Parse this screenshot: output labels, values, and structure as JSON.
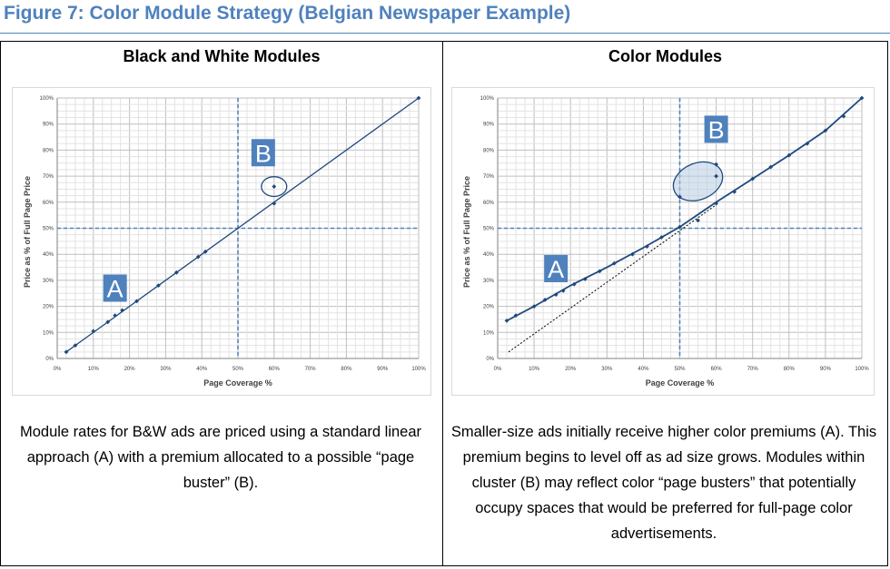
{
  "figure": {
    "title": "Figure 7: Color Module Strategy (Belgian Newspaper Example)",
    "accent_color": "#4f81bd",
    "line_color": "#1f497d"
  },
  "panels": [
    {
      "title": "Black and White Modules",
      "caption": "Module rates for B&W ads are priced using a standard linear approach (A) with a premium allocated to a possible “page buster” (B)."
    },
    {
      "title": "Color Modules",
      "caption": "Smaller-size ads initially receive higher color premiums (A). This premium begins to level off as ad size grows. Modules within cluster (B) may reflect color “page busters” that potentially occupy spaces that would be preferred for full-page color advertisements."
    }
  ],
  "chart_data": [
    {
      "type": "scatter",
      "title": "",
      "xlabel": "Page Coverage %",
      "ylabel": "Price as % of Full Page Price",
      "xlim": [
        0,
        100
      ],
      "ylim": [
        0,
        100
      ],
      "xticks": [
        "0%",
        "10%",
        "20%",
        "30%",
        "40%",
        "50%",
        "60%",
        "70%",
        "80%",
        "90%",
        "100%"
      ],
      "yticks": [
        "0%",
        "10%",
        "20%",
        "30%",
        "40%",
        "50%",
        "60%",
        "70%",
        "80%",
        "90%",
        "100%"
      ],
      "grid": true,
      "reference_lines": {
        "x": 50,
        "y": 50
      },
      "series": [
        {
          "points": [
            [
              2.5,
              2.5
            ],
            [
              5,
              5
            ],
            [
              10,
              10.5
            ],
            [
              14,
              14
            ],
            [
              16,
              16.5
            ],
            [
              18,
              18.5
            ],
            [
              22,
              22
            ],
            [
              28,
              28
            ],
            [
              33,
              33
            ],
            [
              39,
              39
            ],
            [
              41,
              41
            ],
            [
              60,
              59.5
            ],
            [
              100,
              100
            ]
          ],
          "line": [
            [
              2.5,
              2.5
            ],
            [
              100,
              100
            ]
          ]
        },
        {
          "points": [
            [
              60,
              66
            ]
          ]
        }
      ],
      "annotations": [
        {
          "label": "A",
          "x": 16,
          "y": 27
        },
        {
          "label": "B",
          "x": 57,
          "y": 79,
          "encircles": {
            "cx": 60,
            "cy": 66,
            "rx": 3.5,
            "ry": 3.8
          }
        }
      ]
    },
    {
      "type": "scatter",
      "title": "",
      "xlabel": "Page Coverage %",
      "ylabel": "Price as % of Full Page Price",
      "xlim": [
        0,
        100
      ],
      "ylim": [
        0,
        100
      ],
      "xticks": [
        "0%",
        "10%",
        "20%",
        "30%",
        "40%",
        "50%",
        "60%",
        "70%",
        "80%",
        "90%",
        "100%"
      ],
      "yticks": [
        "0%",
        "10%",
        "20%",
        "30%",
        "40%",
        "50%",
        "60%",
        "70%",
        "80%",
        "90%",
        "100%"
      ],
      "grid": true,
      "reference_lines": {
        "x": 50,
        "y": 50
      },
      "series": [
        {
          "points": [
            [
              2.5,
              14.5
            ],
            [
              5,
              16.5
            ],
            [
              10,
              20
            ],
            [
              13,
              22.5
            ],
            [
              16,
              24.5
            ],
            [
              18,
              26
            ],
            [
              21,
              28.5
            ],
            [
              24,
              30.5
            ],
            [
              28,
              33.5
            ],
            [
              32,
              36.5
            ],
            [
              37,
              40
            ],
            [
              41,
              43
            ],
            [
              45,
              46.5
            ],
            [
              50,
              50.5
            ],
            [
              55,
              53
            ],
            [
              60,
              59.5
            ],
            [
              65,
              64
            ],
            [
              70,
              69
            ],
            [
              75,
              73.5
            ],
            [
              80,
              78
            ],
            [
              85,
              82.5
            ],
            [
              90,
              87.5
            ],
            [
              95,
              93
            ],
            [
              100,
              100
            ]
          ],
          "line": [
            [
              2.5,
              14.5
            ],
            [
              10,
              20
            ],
            [
              20,
              28
            ],
            [
              30,
              35
            ],
            [
              40,
              42.5
            ],
            [
              50,
              50.5
            ],
            [
              60,
              60
            ],
            [
              70,
              69
            ],
            [
              80,
              78
            ],
            [
              90,
              87.5
            ],
            [
              100,
              100
            ]
          ]
        },
        {
          "points": [
            [
              50,
              62
            ],
            [
              60,
              70
            ],
            [
              60,
              74.5
            ]
          ]
        }
      ],
      "trend_dotted": [
        [
          3,
          2.5
        ],
        [
          60,
          59
        ]
      ],
      "annotations": [
        {
          "label": "A",
          "x": 16,
          "y": 34.5
        },
        {
          "label": "B",
          "x": 60,
          "y": 88,
          "encircles": {
            "cx": 55,
            "cy": 68,
            "rx": 7,
            "ry": 7,
            "filled": true
          }
        }
      ]
    }
  ]
}
